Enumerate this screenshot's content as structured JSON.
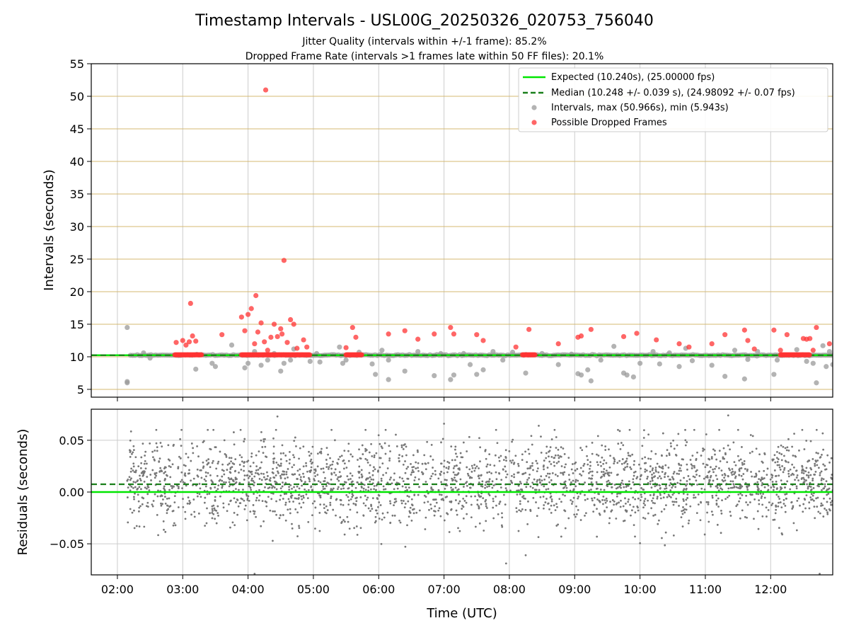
{
  "figure": {
    "title": "Timestamp Intervals - USL00G_20250326_020753_756040",
    "subtitle_1": "Jitter Quality (intervals within +/-1 frame): 85.2%",
    "subtitle_2": "Dropped Frame Rate (intervals >1 frames late within 50 FF files): 20.1%"
  },
  "colors": {
    "expected": "#00e600",
    "median": "#1a7f1a",
    "intervals": "#999999",
    "dropped": "#ff3333",
    "residuals": "#777777",
    "gold_grid": "#d4b870",
    "grid": "#cccccc"
  },
  "chart_data": [
    {
      "type": "scatter",
      "xlabel": "",
      "ylabel": "Intervals (seconds)",
      "x_hours_range": [
        1.6,
        12.95
      ],
      "ylim": [
        3.8,
        55
      ],
      "yticks": [
        5,
        10,
        15,
        20,
        25,
        30,
        35,
        40,
        45,
        50,
        55
      ],
      "grid": true,
      "legend_position": "top-right",
      "legend": [
        "Expected (10.240s), (25.00000 fps)",
        "Median (10.248 +/- 0.039 s), (24.98092 +/- 0.07 fps)",
        "Intervals, max (50.966s), min (5.943s)",
        "Possible Dropped Frames"
      ],
      "expected_value": 10.24,
      "median_value": 10.248,
      "dropped_frames": [
        [
          2.9,
          12.2
        ],
        [
          3.0,
          12.5
        ],
        [
          3.05,
          11.8
        ],
        [
          3.1,
          12.3
        ],
        [
          3.15,
          13.2
        ],
        [
          3.12,
          18.2
        ],
        [
          3.2,
          12.4
        ],
        [
          3.6,
          13.4
        ],
        [
          3.9,
          16.1
        ],
        [
          3.95,
          14.0
        ],
        [
          4.0,
          16.5
        ],
        [
          4.05,
          17.4
        ],
        [
          4.1,
          12.0
        ],
        [
          4.12,
          19.4
        ],
        [
          4.15,
          13.8
        ],
        [
          4.2,
          15.2
        ],
        [
          4.25,
          12.3
        ],
        [
          4.27,
          50.97
        ],
        [
          4.3,
          11.0
        ],
        [
          4.35,
          13.0
        ],
        [
          4.4,
          15.0
        ],
        [
          4.45,
          13.1
        ],
        [
          4.5,
          14.3
        ],
        [
          4.52,
          13.5
        ],
        [
          4.55,
          24.8
        ],
        [
          4.6,
          12.2
        ],
        [
          4.65,
          15.7
        ],
        [
          4.7,
          15.0
        ],
        [
          4.75,
          11.3
        ],
        [
          4.85,
          12.6
        ],
        [
          4.9,
          11.5
        ],
        [
          5.5,
          11.4
        ],
        [
          5.6,
          14.5
        ],
        [
          5.65,
          13.0
        ],
        [
          6.15,
          13.5
        ],
        [
          6.4,
          14.0
        ],
        [
          6.6,
          12.7
        ],
        [
          6.85,
          13.5
        ],
        [
          7.1,
          14.5
        ],
        [
          7.15,
          13.5
        ],
        [
          7.5,
          13.4
        ],
        [
          7.6,
          12.5
        ],
        [
          8.1,
          11.5
        ],
        [
          8.3,
          14.2
        ],
        [
          8.75,
          12.0
        ],
        [
          9.05,
          13.0
        ],
        [
          9.1,
          13.2
        ],
        [
          9.25,
          14.2
        ],
        [
          9.75,
          13.1
        ],
        [
          9.95,
          13.6
        ],
        [
          10.25,
          12.6
        ],
        [
          10.6,
          12.0
        ],
        [
          10.75,
          11.5
        ],
        [
          11.1,
          12.0
        ],
        [
          11.3,
          13.4
        ],
        [
          11.6,
          14.1
        ],
        [
          11.65,
          12.5
        ],
        [
          11.75,
          11.2
        ],
        [
          12.05,
          14.1
        ],
        [
          12.15,
          11.0
        ],
        [
          12.25,
          13.4
        ],
        [
          12.5,
          12.8
        ],
        [
          12.55,
          12.7
        ],
        [
          12.6,
          12.8
        ],
        [
          12.65,
          11.0
        ],
        [
          12.7,
          14.5
        ],
        [
          12.9,
          12.0
        ]
      ],
      "dropped_bands": [
        [
          2.88,
          3.3
        ],
        [
          3.9,
          4.95
        ],
        [
          5.5,
          5.75
        ],
        [
          8.2,
          8.4
        ],
        [
          12.15,
          12.6
        ]
      ],
      "low_outliers": [
        [
          2.15,
          14.5
        ],
        [
          2.15,
          6.0
        ],
        [
          2.15,
          6.2
        ],
        [
          2.4,
          10.6
        ],
        [
          2.5,
          9.8
        ],
        [
          3.2,
          8.1
        ],
        [
          3.45,
          9.0
        ],
        [
          3.5,
          8.5
        ],
        [
          3.75,
          11.8
        ],
        [
          3.95,
          8.3
        ],
        [
          4.0,
          9.0
        ],
        [
          4.1,
          10.8
        ],
        [
          4.2,
          8.7
        ],
        [
          4.3,
          9.5
        ],
        [
          4.4,
          10.5
        ],
        [
          4.5,
          7.8
        ],
        [
          4.55,
          9.0
        ],
        [
          4.65,
          9.5
        ],
        [
          4.7,
          11.2
        ],
        [
          4.95,
          9.3
        ],
        [
          5.05,
          10.5
        ],
        [
          5.1,
          9.2
        ],
        [
          5.4,
          11.5
        ],
        [
          5.45,
          9.0
        ],
        [
          5.5,
          9.5
        ],
        [
          5.7,
          10.7
        ],
        [
          5.9,
          8.9
        ],
        [
          5.95,
          7.3
        ],
        [
          6.05,
          11.0
        ],
        [
          6.15,
          9.5
        ],
        [
          6.15,
          6.5
        ],
        [
          6.4,
          7.8
        ],
        [
          6.6,
          10.8
        ],
        [
          6.85,
          7.1
        ],
        [
          6.95,
          10.5
        ],
        [
          7.1,
          6.5
        ],
        [
          7.15,
          7.2
        ],
        [
          7.3,
          10.5
        ],
        [
          7.4,
          8.8
        ],
        [
          7.5,
          7.3
        ],
        [
          7.6,
          8.0
        ],
        [
          7.75,
          10.8
        ],
        [
          7.9,
          9.5
        ],
        [
          8.05,
          10.7
        ],
        [
          8.25,
          7.5
        ],
        [
          8.5,
          10.5
        ],
        [
          8.75,
          8.8
        ],
        [
          8.95,
          10.4
        ],
        [
          9.05,
          7.4
        ],
        [
          9.1,
          7.2
        ],
        [
          9.2,
          8.0
        ],
        [
          9.25,
          6.3
        ],
        [
          9.4,
          9.5
        ],
        [
          9.6,
          11.6
        ],
        [
          9.75,
          7.5
        ],
        [
          9.8,
          7.2
        ],
        [
          9.9,
          6.9
        ],
        [
          10.0,
          9.0
        ],
        [
          10.2,
          10.8
        ],
        [
          10.3,
          8.9
        ],
        [
          10.45,
          10.6
        ],
        [
          10.6,
          8.5
        ],
        [
          10.7,
          11.3
        ],
        [
          10.8,
          9.4
        ],
        [
          11.1,
          8.7
        ],
        [
          11.3,
          7.0
        ],
        [
          11.45,
          11.0
        ],
        [
          11.6,
          6.6
        ],
        [
          11.65,
          9.6
        ],
        [
          11.8,
          10.8
        ],
        [
          12.05,
          7.3
        ],
        [
          12.1,
          9.5
        ],
        [
          12.4,
          11.1
        ],
        [
          12.55,
          9.3
        ],
        [
          12.65,
          9.0
        ],
        [
          12.7,
          6.0
        ],
        [
          12.8,
          11.7
        ],
        [
          12.9,
          10.8
        ],
        [
          12.95,
          8.8
        ],
        [
          12.85,
          8.5
        ]
      ]
    },
    {
      "type": "scatter",
      "xlabel": "Time (UTC)",
      "ylabel": "Residuals (seconds)",
      "x_hours_range": [
        1.6,
        12.95
      ],
      "xtick_labels": [
        "02:00",
        "03:00",
        "04:00",
        "05:00",
        "06:00",
        "07:00",
        "08:00",
        "09:00",
        "10:00",
        "11:00",
        "12:00"
      ],
      "ylim": [
        -0.08,
        0.08
      ],
      "ytick_labels": [
        "0.05",
        "0.00",
        "−0.05"
      ],
      "yticks": [
        0.05,
        0.0,
        -0.05
      ],
      "expected_value": 0.0,
      "median_value": 0.0075,
      "residual_cloud": {
        "x_start": 2.15,
        "x_end": 12.95,
        "mean": 0.01,
        "sd": 0.02,
        "count": 2600
      },
      "notable_points": [
        [
          4.45,
          0.073
        ],
        [
          11.35,
          0.074
        ],
        [
          8.45,
          0.064
        ],
        [
          7.0,
          0.066
        ],
        [
          4.1,
          -0.079
        ],
        [
          7.95,
          -0.069
        ],
        [
          8.25,
          -0.061
        ],
        [
          12.75,
          -0.079
        ]
      ]
    }
  ]
}
